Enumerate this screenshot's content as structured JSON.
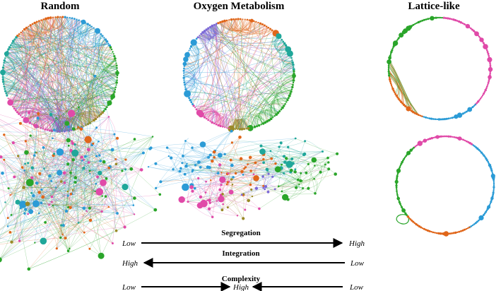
{
  "panels": [
    {
      "title": "Random"
    },
    {
      "title": "Oxygen Metabolism"
    },
    {
      "title": "Lattice-like"
    }
  ],
  "colors": {
    "blue": "#2b9bd6",
    "green": "#2aa52a",
    "orange": "#e0661a",
    "magenta": "#e04aa8",
    "purple": "#7b68d6",
    "teal": "#20a79a",
    "olive": "#9a8a28"
  },
  "scales": [
    {
      "title": "Segregation",
      "left": "Low",
      "right": "High",
      "direction": "right"
    },
    {
      "title": "Integration",
      "left": "High",
      "right": "Low",
      "direction": "left"
    },
    {
      "title": "Complexity",
      "left": "Low",
      "center": "High",
      "right": "Low",
      "direction": "converge"
    }
  ]
}
